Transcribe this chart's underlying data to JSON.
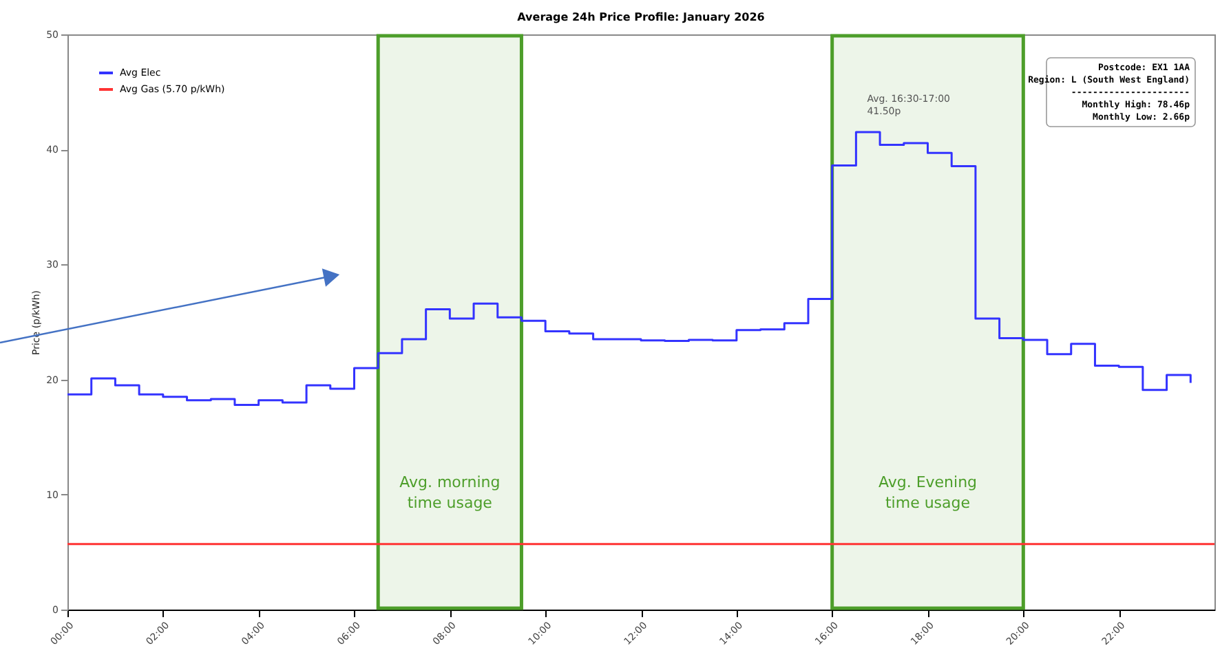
{
  "chart_data": {
    "type": "step",
    "title": "Average 24h Price Profile: January 2026",
    "ylabel": "Price (p/kWh)",
    "xlim": [
      0,
      24
    ],
    "xticks": [
      {
        "value": 0,
        "label": "00:00"
      },
      {
        "value": 2,
        "label": "02:00"
      },
      {
        "value": 4,
        "label": "04:00"
      },
      {
        "value": 6,
        "label": "06:00"
      },
      {
        "value": 8,
        "label": "08:00"
      },
      {
        "value": 10,
        "label": "10:00"
      },
      {
        "value": 12,
        "label": "12:00"
      },
      {
        "value": 14,
        "label": "14:00"
      },
      {
        "value": 16,
        "label": "16:00"
      },
      {
        "value": 18,
        "label": "18:00"
      },
      {
        "value": 20,
        "label": "20:00"
      },
      {
        "value": 22,
        "label": "22:00"
      }
    ],
    "ylim": [
      0,
      50
    ],
    "yticks": [
      0,
      10,
      20,
      30,
      40,
      50
    ],
    "grid": false,
    "legend": "top left",
    "series": [
      {
        "name": "Avg Elec",
        "type": "step",
        "color": "#3333ff",
        "x": [
          0,
          0.5,
          1,
          1.5,
          2,
          2.5,
          3,
          3.5,
          4,
          4.5,
          5,
          5.5,
          6,
          6.5,
          7,
          7.5,
          8,
          8.5,
          9,
          9.5,
          10,
          10.5,
          11,
          11.5,
          12,
          12.5,
          13,
          13.5,
          14,
          14.5,
          15,
          15.5,
          16,
          16.5,
          17,
          17.5,
          18,
          18.5,
          19,
          19.5,
          20,
          20.5,
          21,
          21.5,
          22,
          22.5,
          23,
          23.5
        ],
        "values": [
          18.7,
          20.1,
          19.5,
          18.7,
          18.5,
          18.2,
          18.3,
          17.8,
          18.2,
          18.0,
          19.5,
          19.2,
          21.0,
          22.3,
          23.5,
          26.1,
          25.3,
          26.6,
          25.4,
          25.1,
          24.2,
          24.0,
          23.5,
          23.5,
          23.4,
          23.35,
          23.45,
          23.4,
          24.3,
          24.35,
          24.9,
          27.0,
          38.6,
          41.5,
          40.4,
          40.55,
          39.7,
          38.55,
          25.3,
          23.6,
          23.45,
          22.2,
          23.1,
          21.2,
          21.1,
          19.1,
          20.4,
          19.7
        ]
      },
      {
        "name": "Avg Gas (5.70 p/kWh)",
        "type": "line",
        "color": "#ff3333",
        "x": [
          0,
          24
        ],
        "values": [
          5.7,
          5.7
        ]
      }
    ],
    "bands": [
      {
        "axis": "x",
        "from": 6.5,
        "to": 9.5,
        "label": "Avg. morning\ntime usage",
        "color": "#4d9e2a"
      },
      {
        "axis": "x",
        "from": 16,
        "to": 20,
        "label": "Avg. Evening\ntime usage",
        "color": "#4d9e2a"
      }
    ],
    "annotations": [
      {
        "text": "Avg. 16:30-17:00\n41.50p",
        "x": 16.5,
        "y": 41.5
      },
      "Postcode: EX1 1AA",
      "Region: L (South West England)",
      "----------------------",
      "Monthly High: 78.46p",
      "Monthly Low: 2.66p"
    ]
  }
}
